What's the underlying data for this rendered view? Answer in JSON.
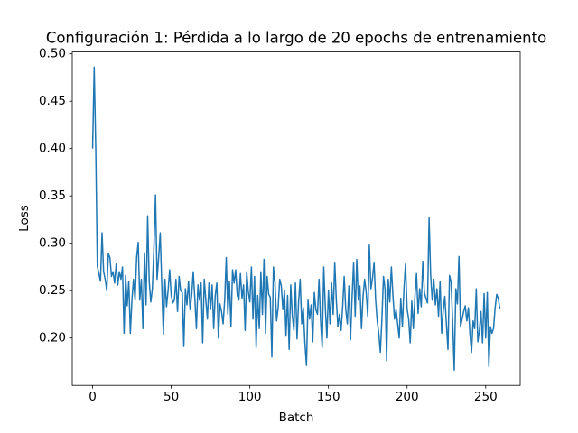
{
  "chart_data": {
    "type": "line",
    "title": "Configuración 1: Pérdida a lo largo de 20 epochs de entrenamiento",
    "x_label": "Batch",
    "y_label": "Loss",
    "color": "#1f77b4",
    "x": [
      0,
      1,
      2,
      3,
      4,
      5,
      6,
      7,
      8,
      9,
      10,
      11,
      12,
      13,
      14,
      15,
      16,
      17,
      18,
      19,
      20,
      21,
      22,
      23,
      24,
      25,
      26,
      27,
      28,
      29,
      30,
      31,
      32,
      33,
      34,
      35,
      36,
      37,
      38,
      39,
      40,
      41,
      42,
      43,
      44,
      45,
      46,
      47,
      48,
      49,
      50,
      51,
      52,
      53,
      54,
      55,
      56,
      57,
      58,
      59,
      60,
      61,
      62,
      63,
      64,
      65,
      66,
      67,
      68,
      69,
      70,
      71,
      72,
      73,
      74,
      75,
      76,
      77,
      78,
      79,
      80,
      81,
      82,
      83,
      84,
      85,
      86,
      87,
      88,
      89,
      90,
      91,
      92,
      93,
      94,
      95,
      96,
      97,
      98,
      99,
      100,
      101,
      102,
      103,
      104,
      105,
      106,
      107,
      108,
      109,
      110,
      111,
      112,
      113,
      114,
      115,
      116,
      117,
      118,
      119,
      120,
      121,
      122,
      123,
      124,
      125,
      126,
      127,
      128,
      129,
      130,
      131,
      132,
      133,
      134,
      135,
      136,
      137,
      138,
      139,
      140,
      141,
      142,
      143,
      144,
      145,
      146,
      147,
      148,
      149,
      150,
      151,
      152,
      153,
      154,
      155,
      156,
      157,
      158,
      159,
      160,
      161,
      162,
      163,
      164,
      165,
      166,
      167,
      168,
      169,
      170,
      171,
      172,
      173,
      174,
      175,
      176,
      177,
      178,
      179,
      180,
      181,
      182,
      183,
      184,
      185,
      186,
      187,
      188,
      189,
      190,
      191,
      192,
      193,
      194,
      195,
      196,
      197,
      198,
      199,
      200,
      201,
      202,
      203,
      204,
      205,
      206,
      207,
      208,
      209,
      210,
      211,
      212,
      213,
      214,
      215,
      216,
      217,
      218,
      219,
      220,
      221,
      222,
      223,
      224,
      225,
      226,
      227,
      228,
      229,
      230,
      231,
      232,
      233,
      234,
      235,
      236,
      237,
      238,
      239,
      240,
      241,
      242,
      243,
      244,
      245,
      246,
      247,
      248,
      249,
      250,
      251,
      252,
      253,
      254,
      255,
      256,
      257,
      258,
      259
    ],
    "values": [
      0.4,
      0.486,
      0.4,
      0.276,
      0.268,
      0.26,
      0.311,
      0.27,
      0.262,
      0.25,
      0.289,
      0.285,
      0.265,
      0.27,
      0.258,
      0.278,
      0.256,
      0.27,
      0.262,
      0.275,
      0.205,
      0.266,
      0.234,
      0.26,
      0.205,
      0.24,
      0.262,
      0.24,
      0.285,
      0.301,
      0.24,
      0.262,
      0.21,
      0.29,
      0.235,
      0.329,
      0.26,
      0.238,
      0.252,
      0.296,
      0.351,
      0.262,
      0.285,
      0.311,
      0.255,
      0.204,
      0.262,
      0.233,
      0.25,
      0.272,
      0.245,
      0.237,
      0.24,
      0.262,
      0.228,
      0.265,
      0.25,
      0.248,
      0.191,
      0.252,
      0.235,
      0.26,
      0.23,
      0.245,
      0.27,
      0.242,
      0.21,
      0.256,
      0.24,
      0.258,
      0.195,
      0.262,
      0.24,
      0.22,
      0.258,
      0.23,
      0.256,
      0.21,
      0.245,
      0.258,
      0.2,
      0.236,
      0.228,
      0.215,
      0.24,
      0.285,
      0.225,
      0.26,
      0.212,
      0.272,
      0.258,
      0.272,
      0.245,
      0.24,
      0.268,
      0.242,
      0.256,
      0.208,
      0.27,
      0.249,
      0.238,
      0.275,
      0.22,
      0.265,
      0.19,
      0.245,
      0.21,
      0.27,
      0.225,
      0.283,
      0.205,
      0.265,
      0.246,
      0.243,
      0.18,
      0.275,
      0.258,
      0.218,
      0.232,
      0.262,
      0.255,
      0.23,
      0.25,
      0.202,
      0.245,
      0.188,
      0.256,
      0.224,
      0.208,
      0.258,
      0.199,
      0.238,
      0.262,
      0.215,
      0.232,
      0.195,
      0.171,
      0.24,
      0.22,
      0.235,
      0.196,
      0.248,
      0.23,
      0.225,
      0.262,
      0.218,
      0.19,
      0.275,
      0.232,
      0.2,
      0.25,
      0.215,
      0.258,
      0.225,
      0.28,
      0.24,
      0.212,
      0.225,
      0.208,
      0.232,
      0.265,
      0.23,
      0.215,
      0.255,
      0.198,
      0.242,
      0.28,
      0.223,
      0.283,
      0.24,
      0.255,
      0.21,
      0.244,
      0.262,
      0.248,
      0.223,
      0.298,
      0.252,
      0.263,
      0.28,
      0.24,
      0.218,
      0.205,
      0.185,
      0.22,
      0.265,
      0.252,
      0.176,
      0.262,
      0.238,
      0.275,
      0.245,
      0.22,
      0.23,
      0.215,
      0.2,
      0.242,
      0.212,
      0.252,
      0.278,
      0.231,
      0.22,
      0.195,
      0.239,
      0.21,
      0.244,
      0.268,
      0.226,
      0.252,
      0.233,
      0.281,
      0.248,
      0.242,
      0.237,
      0.327,
      0.266,
      0.24,
      0.262,
      0.235,
      0.252,
      0.223,
      0.26,
      0.205,
      0.229,
      0.244,
      0.215,
      0.188,
      0.266,
      0.259,
      0.217,
      0.166,
      0.252,
      0.236,
      0.286,
      0.212,
      0.22,
      0.228,
      0.234,
      0.218,
      0.232,
      0.204,
      0.185,
      0.218,
      0.21,
      0.252,
      0.196,
      0.208,
      0.228,
      0.195,
      0.247,
      0.2,
      0.248,
      0.17,
      0.212,
      0.205,
      0.21,
      0.232,
      0.246,
      0.242,
      0.231
    ],
    "xlim": [
      -12.95,
      271.95
    ],
    "xticks": [
      0,
      50,
      100,
      150,
      200,
      250
    ],
    "ylim": [
      0.15,
      0.502
    ],
    "yticks": [
      {
        "value": 0.2,
        "label": "0.20"
      },
      0.25,
      {
        "value": 0.3,
        "label": "0.30"
      },
      0.35,
      {
        "value": 0.4,
        "label": "0.40"
      },
      0.45,
      {
        "value": 0.5,
        "label": "0.50"
      }
    ],
    "grid": false
  }
}
